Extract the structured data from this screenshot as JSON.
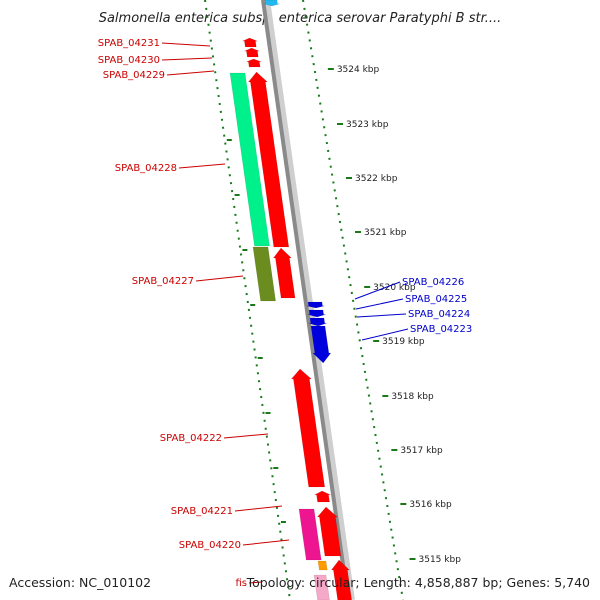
{
  "title": "Salmonella enterica subsp. enterica serovar Paratyphi B str....",
  "accession": "Accession: NC_010102",
  "topology": "Topology: circular; Length: 4,858,887 bp; Genes: 5,740",
  "colors": {
    "red": "#ff0000",
    "blue": "#0000dd",
    "green": "#00f08c",
    "olive": "#6b8c1e",
    "magenta": "#ee1590",
    "orange": "#ff9a00",
    "cyan": "#22b8f0",
    "scale_green": "#1a7a1a",
    "label_red": "#cc0000",
    "label_blue": "#0000cc",
    "backbone": "#8a8a8a"
  },
  "ticks": [
    {
      "label": "3524 kbp"
    },
    {
      "label": "3523 kbp"
    },
    {
      "label": "3522 kbp"
    },
    {
      "label": "3521 kbp"
    },
    {
      "label": "3520 kbp"
    },
    {
      "label": "3519 kbp"
    },
    {
      "label": "3518 kbp"
    },
    {
      "label": "3517 kbp"
    },
    {
      "label": "3516 kbp"
    },
    {
      "label": "3515 kbp"
    }
  ],
  "genes_left": [
    {
      "label": "SPAB_04231"
    },
    {
      "label": "SPAB_04230"
    },
    {
      "label": "SPAB_04229"
    },
    {
      "label": "SPAB_04228"
    },
    {
      "label": "SPAB_04227"
    },
    {
      "label": "SPAB_04222"
    },
    {
      "label": "SPAB_04221"
    },
    {
      "label": "SPAB_04220"
    },
    {
      "label": "fis"
    }
  ],
  "genes_right": [
    {
      "label": "SPAB_04226"
    },
    {
      "label": "SPAB_04225"
    },
    {
      "label": "SPAB_04224"
    },
    {
      "label": "SPAB_04223"
    }
  ]
}
